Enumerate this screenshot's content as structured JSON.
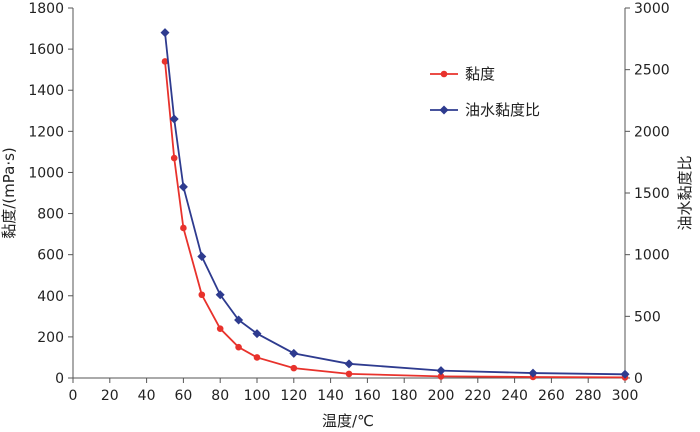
{
  "chart_data": {
    "type": "line",
    "title": "",
    "xlabel": "温度/℃",
    "ylabel_left": "黏度/(mPa·s)",
    "ylabel_right": "油水黏度比",
    "xlim": [
      0,
      300
    ],
    "ylim_left": [
      0,
      1800
    ],
    "ylim_right": [
      0,
      3000
    ],
    "x_ticks": [
      0,
      20,
      40,
      60,
      80,
      100,
      120,
      140,
      160,
      180,
      200,
      220,
      240,
      260,
      280,
      300
    ],
    "y_left_ticks": [
      0,
      200,
      400,
      600,
      800,
      1000,
      1200,
      1400,
      1600,
      1800
    ],
    "y_right_ticks": [
      0,
      500,
      1000,
      1500,
      2000,
      2500,
      3000
    ],
    "grid": false,
    "legend_position": "top-right",
    "series": [
      {
        "name": "黏度",
        "axis": "left",
        "color": "#e8322c",
        "marker": "circle",
        "x": [
          50,
          55,
          60,
          70,
          80,
          90,
          100,
          120,
          150,
          200,
          250,
          300
        ],
        "y": [
          1540,
          1070,
          730,
          405,
          240,
          150,
          100,
          48,
          20,
          8,
          5,
          3
        ]
      },
      {
        "name": "油水黏度比",
        "axis": "right",
        "color": "#2e3b8f",
        "marker": "diamond",
        "x": [
          50,
          55,
          60,
          70,
          80,
          90,
          100,
          120,
          150,
          200,
          250,
          300
        ],
        "y": [
          2800,
          2100,
          1550,
          985,
          675,
          470,
          360,
          200,
          115,
          60,
          40,
          30
        ]
      }
    ]
  }
}
